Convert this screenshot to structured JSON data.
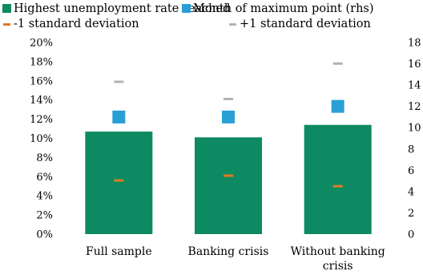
{
  "chart_data": {
    "type": "bar",
    "categories": [
      "Full sample",
      "Banking crisis",
      "Without banking crisis"
    ],
    "category_lines": [
      [
        "Full sample"
      ],
      [
        "Banking crisis"
      ],
      [
        "Without banking",
        "crisis"
      ]
    ],
    "series": [
      {
        "name": "Highest unemployment rate reached",
        "kind": "bar",
        "axis": "left",
        "color": "#0d8a62",
        "values": [
          10.7,
          10.1,
          11.4
        ]
      },
      {
        "name": "Month of maximum point (rhs)",
        "kind": "square-marker",
        "axis": "right",
        "color": "#2a9fd6",
        "values": [
          11.0,
          11.0,
          12.0
        ]
      },
      {
        "name": "-1 standard deviation",
        "kind": "dash-marker",
        "axis": "left",
        "color": "#e07b20",
        "values": [
          5.6,
          6.1,
          5.0
        ]
      },
      {
        "name": "+1 standard deviation",
        "kind": "dash-marker",
        "axis": "left",
        "color": "#b3b3b3",
        "values": [
          15.9,
          14.1,
          17.8
        ]
      }
    ],
    "left_axis": {
      "min": 0,
      "max": 20,
      "step": 2,
      "tick_labels": [
        "0%",
        "2%",
        "4%",
        "6%",
        "8%",
        "10%",
        "12%",
        "14%",
        "16%",
        "18%",
        "20%"
      ]
    },
    "right_axis": {
      "min": 0,
      "max": 18,
      "step": 2,
      "tick_labels": [
        "0",
        "2",
        "4",
        "6",
        "8",
        "10",
        "12",
        "14",
        "16",
        "18"
      ]
    },
    "grid": false,
    "legend_placement": "top-left"
  }
}
